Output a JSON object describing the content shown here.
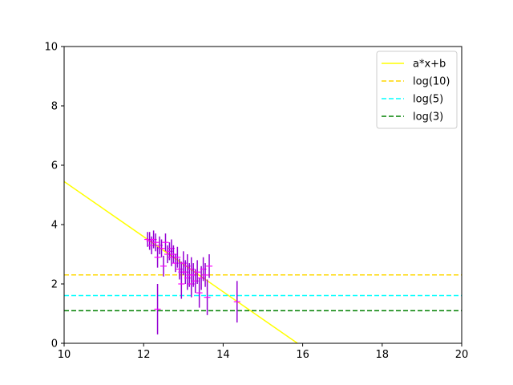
{
  "chart_data": {
    "type": "scatter",
    "title": "",
    "xlabel": "",
    "ylabel": "",
    "xlim": [
      10,
      20
    ],
    "ylim": [
      0,
      10
    ],
    "xticks": [
      10,
      12,
      14,
      16,
      18,
      20
    ],
    "yticks": [
      0,
      2,
      4,
      6,
      8,
      10
    ],
    "grid": false,
    "legend_position": "top-right",
    "series": [
      {
        "name": "a*x+b",
        "kind": "line",
        "color": "#ffff00",
        "dash": "solid",
        "x": [
          10,
          15.87
        ],
        "y": [
          5.45,
          0
        ]
      },
      {
        "name": "log(10)",
        "kind": "hline",
        "color": "#ffd700",
        "dash": "dashed",
        "y": 2.303
      },
      {
        "name": "log(5)",
        "kind": "hline",
        "color": "#00ffff",
        "dash": "dashed",
        "y": 1.609
      },
      {
        "name": "log(3)",
        "kind": "hline",
        "color": "#008000",
        "dash": "dashed",
        "y": 1.099
      }
    ],
    "errorbar_points": {
      "color": "#9400d3",
      "marker_color": "#ff00ff",
      "x": [
        12.1,
        12.15,
        12.2,
        12.25,
        12.3,
        12.35,
        12.35,
        12.4,
        12.45,
        12.5,
        12.55,
        12.6,
        12.65,
        12.7,
        12.7,
        12.75,
        12.8,
        12.85,
        12.9,
        12.95,
        12.95,
        13.0,
        13.05,
        13.1,
        13.1,
        13.15,
        13.2,
        13.2,
        13.25,
        13.3,
        13.35,
        13.4,
        13.45,
        13.5,
        13.55,
        13.6,
        13.65,
        14.35
      ],
      "y": [
        3.5,
        3.45,
        3.3,
        3.5,
        3.4,
        2.9,
        1.15,
        3.3,
        3.2,
        2.6,
        3.4,
        3.0,
        3.1,
        3.2,
        2.9,
        3.0,
        2.7,
        2.9,
        2.5,
        2.4,
        2.0,
        2.7,
        2.4,
        2.6,
        2.2,
        2.3,
        2.5,
        2.0,
        2.3,
        2.1,
        2.4,
        1.7,
        2.2,
        2.5,
        2.3,
        1.55,
        2.6,
        1.4
      ],
      "err": [
        0.25,
        0.3,
        0.3,
        0.3,
        0.3,
        0.35,
        0.85,
        0.3,
        0.3,
        0.35,
        0.3,
        0.3,
        0.3,
        0.3,
        0.3,
        0.3,
        0.3,
        0.35,
        0.35,
        0.35,
        0.5,
        0.4,
        0.4,
        0.4,
        0.4,
        0.4,
        0.4,
        0.45,
        0.4,
        0.4,
        0.4,
        0.5,
        0.4,
        0.4,
        0.4,
        0.6,
        0.4,
        0.7
      ]
    }
  }
}
